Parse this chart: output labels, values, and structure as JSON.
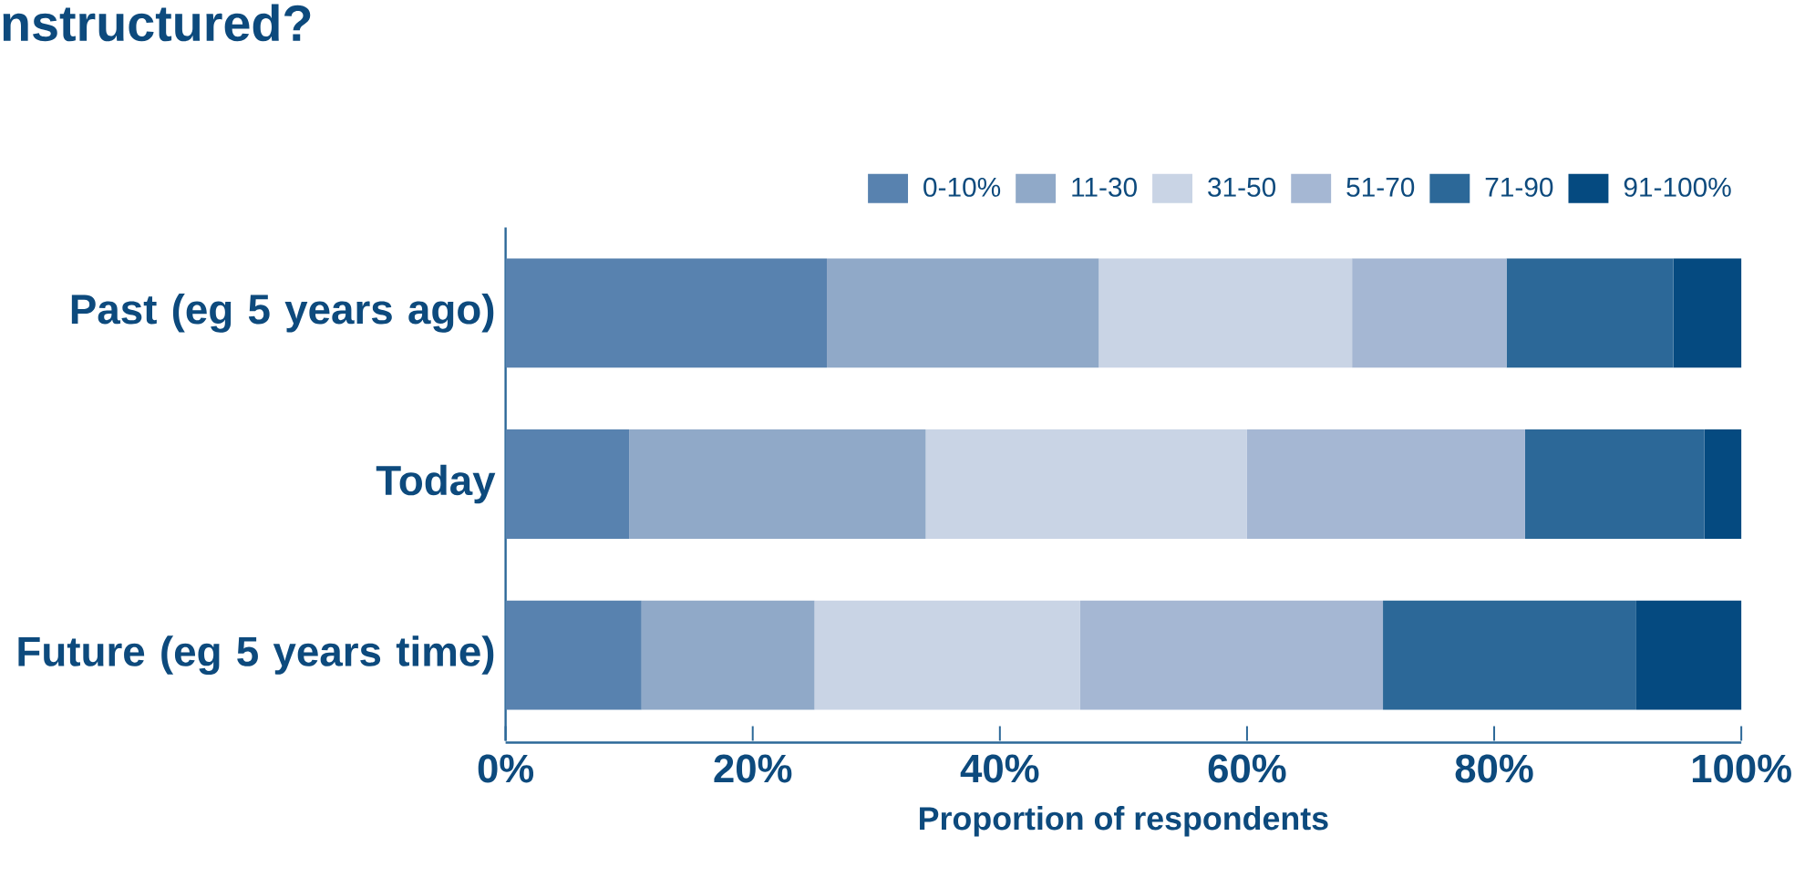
{
  "chart_data": {
    "type": "bar",
    "orientation": "horizontal",
    "stacked": true,
    "title": "nstructured?",
    "xlabel": "Proportion of respondents",
    "categories": [
      "Past (eg 5 years ago)",
      "Today",
      "Future (eg 5 years time)"
    ],
    "series": [
      {
        "name": "0-10%",
        "color": "#5882af",
        "values": [
          26,
          10,
          11
        ]
      },
      {
        "name": "11-30",
        "color": "#90a9c8",
        "values": [
          22,
          24,
          14
        ]
      },
      {
        "name": "31-50",
        "color": "#c9d4e5",
        "values": [
          20.5,
          26,
          21.5
        ]
      },
      {
        "name": "51-70",
        "color": "#a5b7d3",
        "values": [
          12.5,
          22.5,
          24.5
        ]
      },
      {
        "name": "71-90",
        "color": "#2c6898",
        "values": [
          13.5,
          14.5,
          20.5
        ]
      },
      {
        "name": "91-100%",
        "color": "#054a80",
        "values": [
          5.5,
          3,
          8.5
        ]
      }
    ],
    "xlim": [
      0,
      100
    ],
    "xticks": [
      {
        "value": 0,
        "label": "0%"
      },
      {
        "value": 20,
        "label": "20%"
      },
      {
        "value": 40,
        "label": "40%"
      },
      {
        "value": 60,
        "label": "60%"
      },
      {
        "value": 80,
        "label": "80%"
      },
      {
        "value": 100,
        "label": "100%"
      }
    ],
    "legend": "top right"
  }
}
